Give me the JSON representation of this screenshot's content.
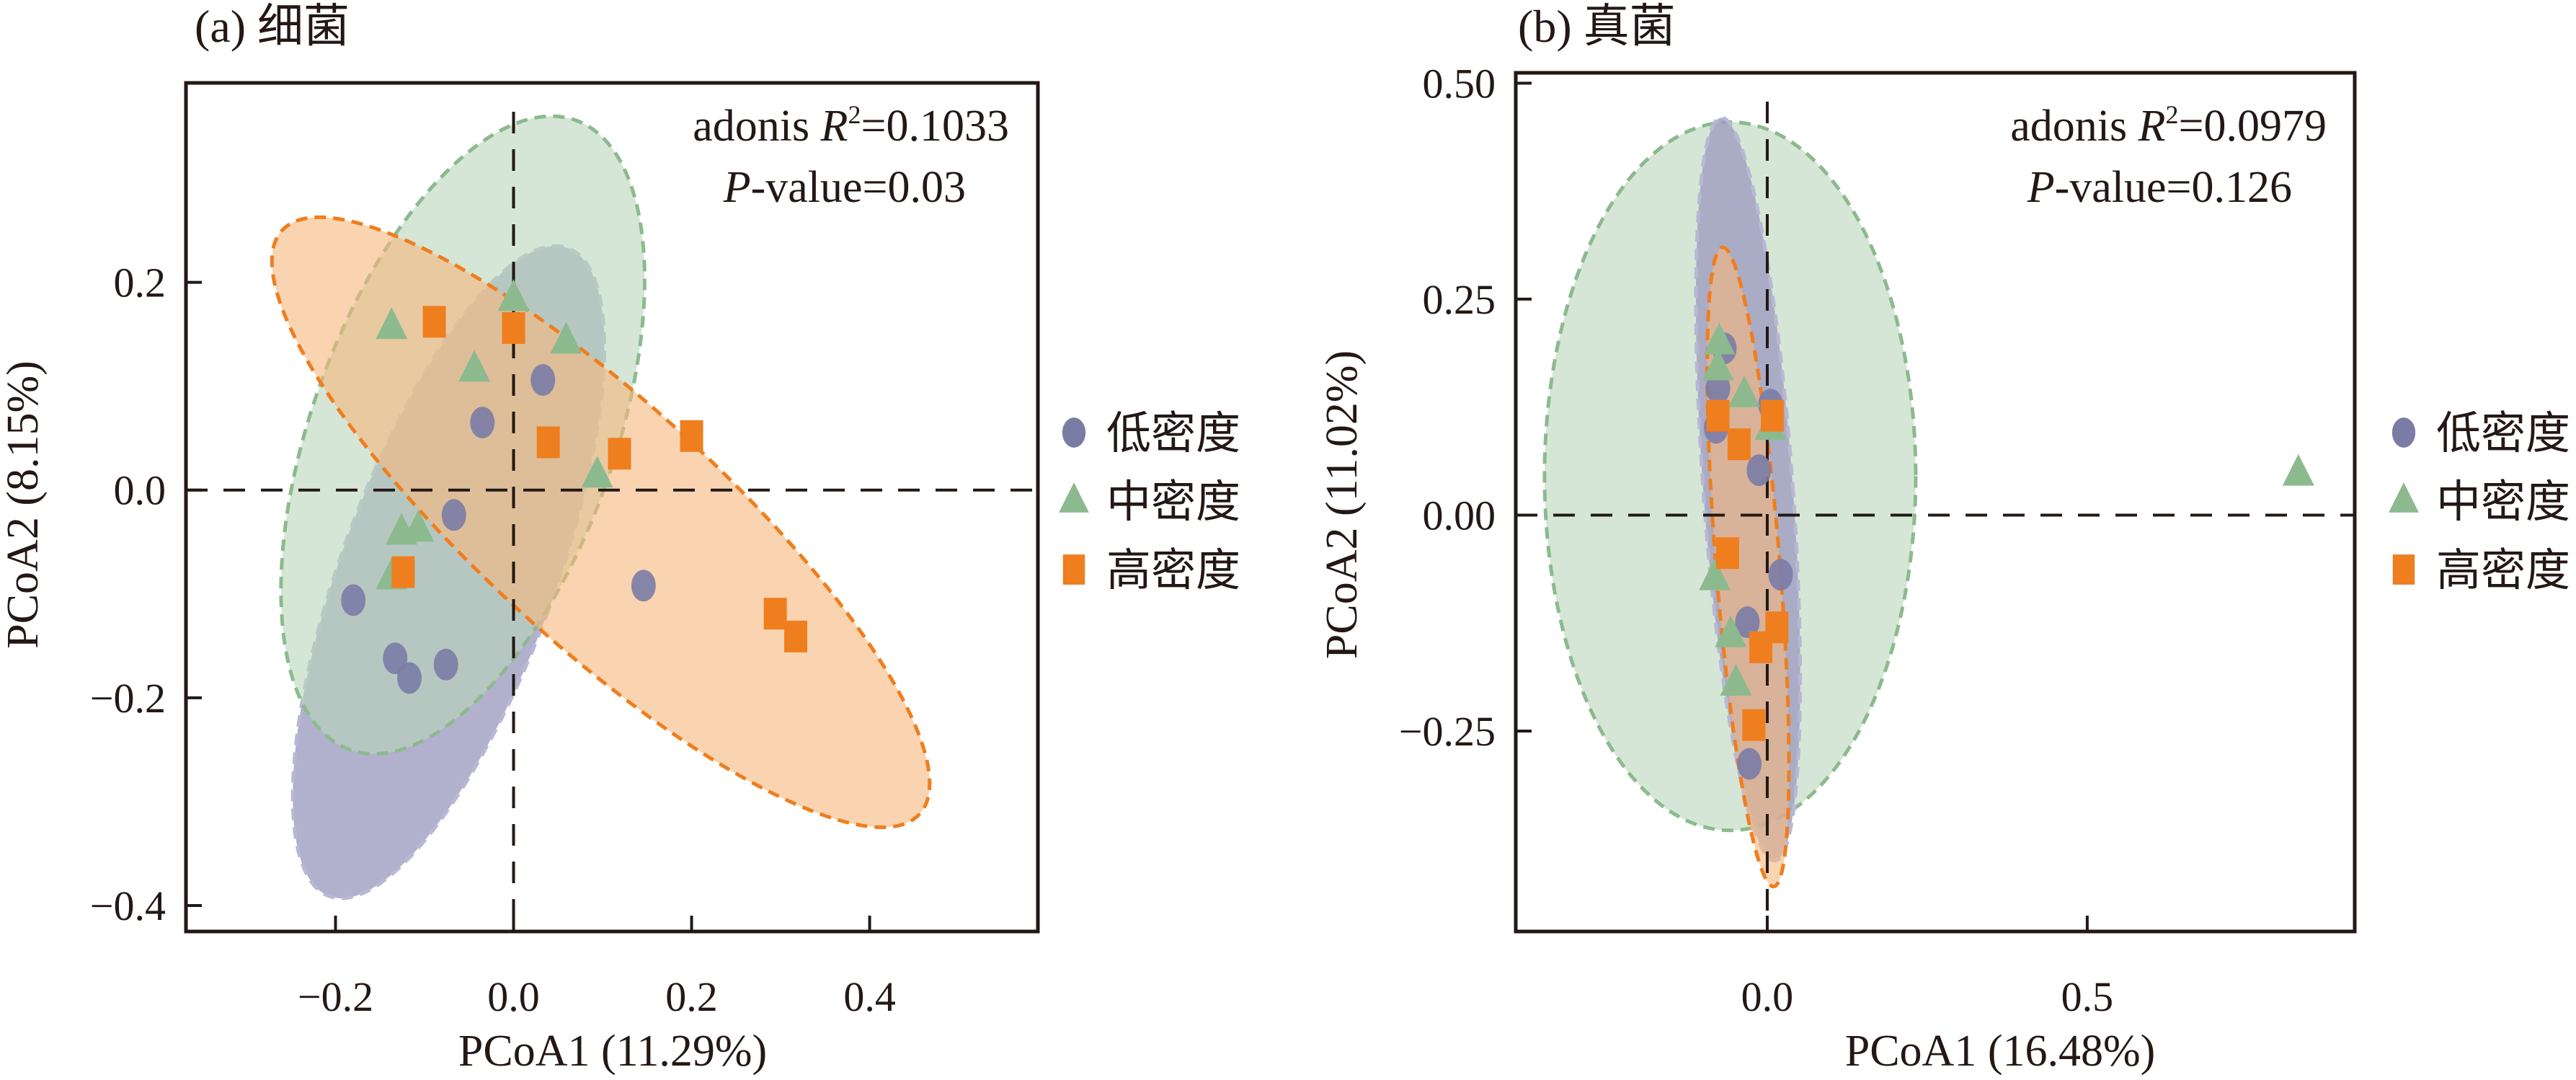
{
  "figure": {
    "legend_items": [
      {
        "label": "低密度",
        "shape": "circle",
        "color": "#7a7ca6"
      },
      {
        "label": "中密度",
        "shape": "triangle",
        "color": "#8cba8e"
      },
      {
        "label": "高密度",
        "shape": "square",
        "color": "#ef7e1f"
      }
    ],
    "ellipse_colors": {
      "low": {
        "fill": "#9f9ec0",
        "stroke": "#b9b8d4",
        "opacity": 0.8
      },
      "mid": {
        "fill": "#b9d6bb",
        "stroke": "#8cba8e",
        "opacity": 0.6
      },
      "high": {
        "fill": "#f7b77c",
        "stroke": "#ef7e1f",
        "opacity": 0.6
      }
    }
  },
  "chart_data": [
    {
      "type": "scatter",
      "title": "(a) 细菌",
      "xlabel": "PCoA1 (11.29%)",
      "ylabel": "PCoA2 (8.15%)",
      "xlim": [
        -0.368,
        0.589
      ],
      "ylim": [
        -0.425,
        0.392
      ],
      "xticks": [
        -0.2,
        0.0,
        0.2,
        0.4
      ],
      "xtick_labels": [
        "−0.2",
        "0.0",
        "0.2",
        "0.4"
      ],
      "yticks": [
        0.2,
        0.0,
        -0.2,
        -0.4
      ],
      "ytick_labels": [
        "0.2",
        "0.0",
        "−0.2",
        "−0.4"
      ],
      "reference_lines": {
        "x": 0,
        "y": 0
      },
      "grid": false,
      "legend": "right",
      "annotation": {
        "line1_prefix": "adonis ",
        "line1_italic": "R",
        "line1_sup": "2",
        "line1_suffix": "=0.1033",
        "line2_italic": "P",
        "line2_suffix": "-value=0.03"
      },
      "series": [
        {
          "name": "低密度",
          "key": "low",
          "marker": "circle",
          "points": [
            [
              -0.035,
              0.065
            ],
            [
              0.033,
              0.106
            ],
            [
              -0.067,
              -0.024
            ],
            [
              -0.18,
              -0.106
            ],
            [
              -0.133,
              -0.162
            ],
            [
              -0.117,
              -0.181
            ],
            [
              -0.076,
              -0.168
            ],
            [
              0.146,
              -0.092
            ]
          ],
          "ellipse": {
            "center": [
              -0.073,
              -0.079
            ],
            "major_end": [
              0.061,
              0.233
            ],
            "minor_semi_x": 0.12
          }
        },
        {
          "name": "中密度",
          "key": "mid",
          "marker": "triangle",
          "points": [
            [
              -0.137,
              0.157
            ],
            [
              0.0,
              0.184
            ],
            [
              -0.044,
              0.116
            ],
            [
              0.059,
              0.143
            ],
            [
              0.094,
              0.014
            ],
            [
              -0.126,
              -0.041
            ],
            [
              -0.107,
              -0.038
            ],
            [
              -0.137,
              -0.084
            ]
          ],
          "ellipse": {
            "center": [
              -0.057,
              0.053
            ],
            "major_end": [
              0.07,
              0.356
            ],
            "minor_semi_x": 0.17
          }
        },
        {
          "name": "高密度",
          "key": "high",
          "marker": "square",
          "points": [
            [
              -0.089,
              0.162
            ],
            [
              0.0,
              0.156
            ],
            [
              0.039,
              0.046
            ],
            [
              0.119,
              0.035
            ],
            [
              0.2,
              0.052
            ],
            [
              -0.124,
              -0.079
            ],
            [
              0.294,
              -0.119
            ],
            [
              0.317,
              -0.141
            ]
          ],
          "ellipse": {
            "center": [
              0.098,
              -0.031
            ],
            "major_end": [
              -0.26,
              0.25
            ],
            "minor_semi_x": 0.135
          }
        }
      ]
    },
    {
      "type": "scatter",
      "title": "(b) 真菌",
      "xlabel": "PCoA1 (16.48%)",
      "ylabel": "PCoA2 (11.02%)",
      "xlim": [
        -0.393,
        0.918
      ],
      "ylim": [
        -0.482,
        0.512
      ],
      "xticks": [
        0.0,
        0.5
      ],
      "xtick_labels": [
        "0.0",
        "0.5"
      ],
      "yticks": [
        0.5,
        0.25,
        0.0,
        -0.25
      ],
      "ytick_labels": [
        "0.50",
        "0.25",
        "0.00",
        "−0.25"
      ],
      "reference_lines": {
        "x": 0,
        "y": 0
      },
      "grid": false,
      "legend": "right",
      "annotation": {
        "line1_prefix": "adonis ",
        "line1_italic": "R",
        "line1_sup": "2",
        "line1_suffix": "=0.0979",
        "line2_italic": "P",
        "line2_suffix": "-value=0.126"
      },
      "series": [
        {
          "name": "低密度",
          "key": "low",
          "marker": "circle",
          "points": [
            [
              -0.067,
              0.193
            ],
            [
              -0.077,
              0.147
            ],
            [
              -0.08,
              0.101
            ],
            [
              0.005,
              0.128
            ],
            [
              -0.013,
              0.052
            ],
            [
              0.021,
              -0.069
            ],
            [
              -0.031,
              -0.124
            ],
            [
              -0.028,
              -0.288
            ]
          ],
          "ellipse": {
            "center": [
              -0.03,
              0.03
            ],
            "major_end": [
              -0.072,
              0.46
            ],
            "minor_semi_x": 0.07
          }
        },
        {
          "name": "中密度",
          "key": "mid",
          "marker": "triangle",
          "points": [
            [
              -0.075,
              0.2
            ],
            [
              -0.077,
              0.17
            ],
            [
              -0.036,
              0.139
            ],
            [
              0.005,
              0.101
            ],
            [
              -0.082,
              -0.073
            ],
            [
              -0.057,
              -0.139
            ],
            [
              -0.049,
              -0.195
            ],
            [
              0.83,
              0.048
            ]
          ],
          "ellipse": {
            "center": [
              -0.058,
              0.045
            ],
            "major_end": [
              -0.058,
              0.455
            ],
            "minor_semi_x": 0.29
          }
        },
        {
          "name": "高密度",
          "key": "high",
          "marker": "square",
          "points": [
            [
              -0.077,
              0.115
            ],
            [
              0.008,
              0.115
            ],
            [
              -0.044,
              0.082
            ],
            [
              -0.062,
              -0.044
            ],
            [
              0.015,
              -0.13
            ],
            [
              -0.01,
              -0.153
            ],
            [
              -0.021,
              -0.243
            ]
          ],
          "ellipse": {
            "center": [
              -0.03,
              -0.06
            ],
            "major_end": [
              -0.07,
              0.31
            ],
            "minor_semi_x": 0.05
          }
        }
      ]
    }
  ]
}
